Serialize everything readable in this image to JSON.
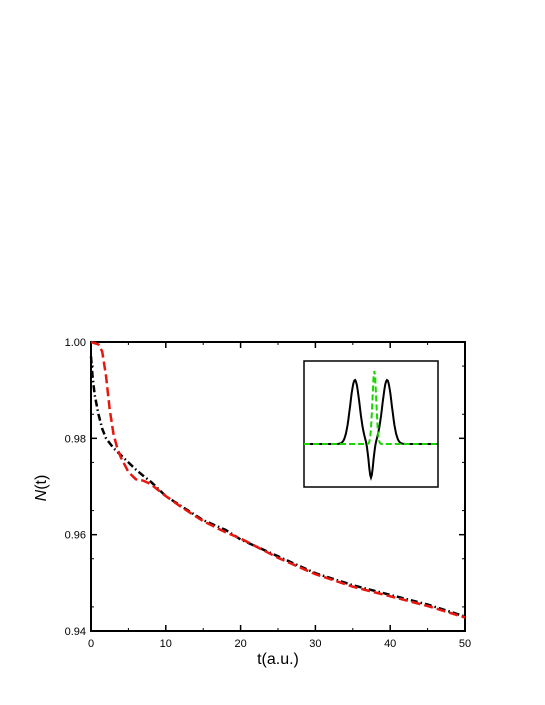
{
  "chart_data": {
    "type": "line",
    "xlabel": "t(a.u.)",
    "ylabel_italic": "N",
    "ylabel_rest": "(t)",
    "xlim": [
      0,
      50
    ],
    "ylim": [
      0.94,
      1.0
    ],
    "xticks": [
      "0",
      "10",
      "20",
      "30",
      "40",
      "50"
    ],
    "yticks": [
      "0.94",
      "0.96",
      "0.98",
      "1.00"
    ],
    "series": [
      {
        "style": "dash-dot",
        "color": "#000000",
        "x": [
          0,
          0.2,
          0.5,
          1,
          1.5,
          2,
          3,
          4,
          5,
          6,
          7,
          8,
          10,
          12,
          15,
          18,
          20,
          25,
          30,
          35,
          40,
          45,
          50
        ],
        "y": [
          0.997,
          0.993,
          0.989,
          0.985,
          0.982,
          0.98,
          0.978,
          0.9765,
          0.975,
          0.9735,
          0.9722,
          0.971,
          0.968,
          0.966,
          0.963,
          0.961,
          0.959,
          0.9555,
          0.952,
          0.9495,
          0.9475,
          0.9455,
          0.943
        ]
      },
      {
        "style": "dashed",
        "color": "#e8160c",
        "x": [
          0,
          1,
          1.5,
          2,
          2.5,
          3,
          3.5,
          4,
          5,
          6,
          7,
          8,
          10,
          12,
          15,
          18,
          20,
          25,
          30,
          35,
          40,
          45,
          50
        ],
        "y": [
          1.0,
          0.9995,
          0.998,
          0.993,
          0.986,
          0.981,
          0.978,
          0.976,
          0.973,
          0.9715,
          0.9712,
          0.9705,
          0.968,
          0.9658,
          0.9628,
          0.9605,
          0.9592,
          0.9552,
          0.9518,
          0.9492,
          0.9472,
          0.9452,
          0.9428
        ]
      }
    ],
    "inset": {
      "series": [
        {
          "name": "",
          "color": "#000000",
          "style": "solid",
          "shape": "odd-double-peak"
        },
        {
          "name": "",
          "color": "#19d600",
          "style": "dashed",
          "shape": "gaussian"
        }
      ]
    }
  }
}
